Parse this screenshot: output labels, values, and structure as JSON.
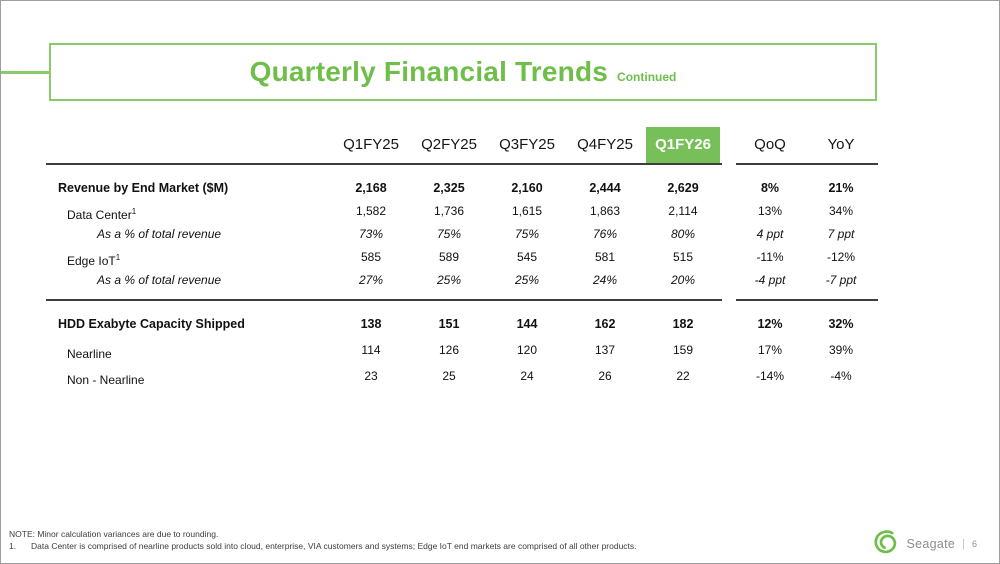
{
  "slide": {
    "title": "Quarterly Financial Trends",
    "title_suffix": "Continued"
  },
  "table": {
    "columns": [
      "Q1FY25",
      "Q2FY25",
      "Q3FY25",
      "Q4FY25",
      "Q1FY26",
      "QoQ",
      "YoY"
    ],
    "highlight_column": "Q1FY26",
    "sections": [
      {
        "rows": [
          {
            "label": "Revenue by End Market ($M)",
            "style": "bold",
            "indent": 0,
            "values": [
              "2,168",
              "2,325",
              "2,160",
              "2,444",
              "2,629",
              "8%",
              "21%"
            ]
          },
          {
            "label": "Data Center",
            "sup": "1",
            "style": "normal",
            "indent": 1,
            "values": [
              "1,582",
              "1,736",
              "1,615",
              "1,863",
              "2,114",
              "13%",
              "34%"
            ]
          },
          {
            "label": "As a % of total revenue",
            "style": "italic",
            "indent": 2,
            "values": [
              "73%",
              "75%",
              "75%",
              "76%",
              "80%",
              "4 ppt",
              "7 ppt"
            ]
          },
          {
            "label": "Edge IoT",
            "sup": "1",
            "style": "normal",
            "indent": 1,
            "values": [
              "585",
              "589",
              "545",
              "581",
              "515",
              "-11%",
              "-12%"
            ]
          },
          {
            "label": "As a % of total revenue",
            "style": "italic",
            "indent": 2,
            "values": [
              "27%",
              "25%",
              "25%",
              "24%",
              "20%",
              "-4 ppt",
              "-7 ppt"
            ]
          }
        ]
      },
      {
        "rows": [
          {
            "label": "HDD Exabyte Capacity Shipped",
            "style": "bold",
            "indent": 0,
            "values": [
              "138",
              "151",
              "144",
              "162",
              "182",
              "12%",
              "32%"
            ]
          },
          {
            "label": "Nearline",
            "style": "normal",
            "indent": 1,
            "values": [
              "114",
              "126",
              "120",
              "137",
              "159",
              "17%",
              "39%"
            ]
          },
          {
            "label": "Non - Nearline",
            "style": "normal",
            "indent": 1,
            "values": [
              "23",
              "25",
              "24",
              "26",
              "22",
              "-14%",
              "-4%"
            ]
          }
        ]
      }
    ]
  },
  "notes": {
    "note": "NOTE: Minor calculation variances are due to rounding.",
    "footnote_number": "1.",
    "footnote": "Data Center is comprised of nearline products sold into cloud, enterprise, VIA customers and systems; Edge IoT end markets are comprised of all other products."
  },
  "footer": {
    "brand": "Seagate",
    "separator": "|",
    "page_number": "6",
    "logo_icon": "seagate-swirl-icon"
  },
  "colors": {
    "brand_green": "#6ebe49",
    "title_border_green": "#8cc968",
    "highlight_fill": "#77bf59",
    "rule": "#3d3d3d"
  }
}
